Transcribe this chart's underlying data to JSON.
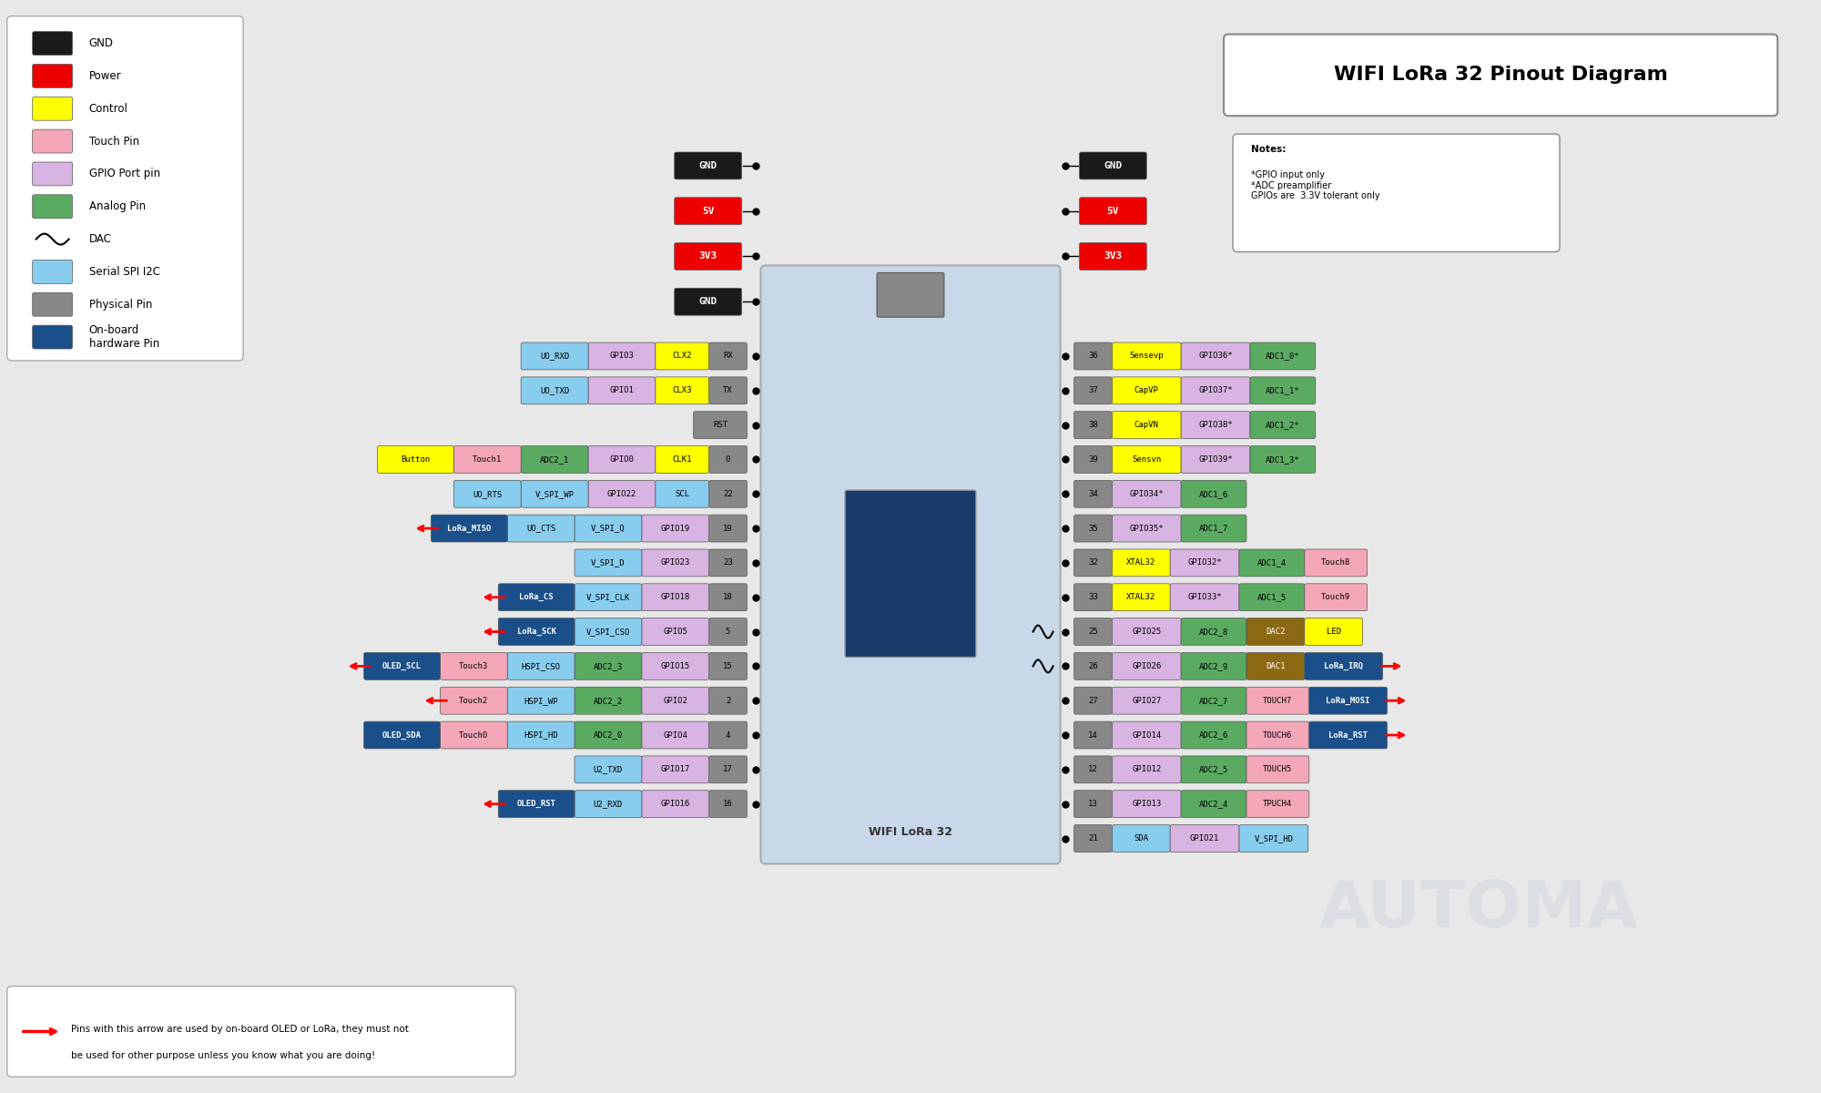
{
  "title": "WIFI LoRa 32 Pinout Diagram",
  "bg_color": "#f0f0f0",
  "board_image_placeholder": true,
  "legend_items": [
    {
      "label": "GND",
      "color": "#000000"
    },
    {
      "label": "Power",
      "color": "#ff0000"
    },
    {
      "label": "Control",
      "color": "#ffff00"
    },
    {
      "label": "Touch Pin",
      "color": "#f4a7b9"
    },
    {
      "label": "GPIO Port pin",
      "color": "#d8b4e2"
    },
    {
      "label": "Analog Pin",
      "color": "#5aab61"
    },
    {
      "label": "DAC",
      "color": "dac"
    },
    {
      "label": "Serial SPI I2C",
      "color": "#88bbee"
    },
    {
      "label": "Physical Pin",
      "color": "#888888"
    },
    {
      "label": "On-board\nhardware Pin",
      "color": "#1a4f8a"
    }
  ],
  "notes": "*GPIO input only\n*ADC preamplifier\nGPIOs are  3.3V tolerant only",
  "colors": {
    "black": "#1a1a1a",
    "red": "#ee0000",
    "yellow": "#ffff00",
    "pink": "#f4a7b9",
    "lavender": "#d8b4e2",
    "green": "#5aab61",
    "light_blue": "#88ccee",
    "gray": "#888888",
    "dark_blue": "#1a4f8a",
    "olive": "#8b6914",
    "light_green": "#90c97a",
    "white": "#ffffff",
    "bg": "#e8e8e8"
  },
  "left_pins": [
    {
      "row": 0,
      "pin_num": null,
      "labels": [
        {
          "text": "GND",
          "color": "#1a1a1a",
          "fc": "#1a1a1a",
          "tc": "white"
        }
      ]
    },
    {
      "row": 1,
      "pin_num": null,
      "labels": [
        {
          "text": "5V",
          "color": "#ee0000",
          "fc": "#ee0000",
          "tc": "white"
        }
      ]
    },
    {
      "row": 2,
      "pin_num": null,
      "labels": [
        {
          "text": "3V3",
          "color": "#ee0000",
          "fc": "#ee0000",
          "tc": "white"
        }
      ]
    },
    {
      "row": 3,
      "pin_num": null,
      "labels": [
        {
          "text": "GND",
          "color": "#1a1a1a",
          "fc": "#1a1a1a",
          "tc": "white"
        }
      ]
    },
    {
      "row": 4,
      "arrow": false,
      "labels": [
        {
          "text": "UO_RXD",
          "fc": "#88ccee",
          "tc": "black"
        },
        {
          "text": "GPIO3",
          "fc": "#d8b4e2",
          "tc": "black"
        },
        {
          "text": "CLX2",
          "fc": "#ffff00",
          "tc": "black"
        },
        {
          "text": "RX",
          "fc": "#888888",
          "tc": "black"
        }
      ]
    },
    {
      "row": 5,
      "arrow": false,
      "labels": [
        {
          "text": "UO_TXD",
          "fc": "#88ccee",
          "tc": "black"
        },
        {
          "text": "GPIO1",
          "fc": "#d8b4e2",
          "tc": "black"
        },
        {
          "text": "CLX3",
          "fc": "#ffff00",
          "tc": "black"
        },
        {
          "text": "TX",
          "fc": "#888888",
          "tc": "black"
        }
      ]
    },
    {
      "row": 6,
      "arrow": false,
      "labels": [
        {
          "text": "RST",
          "fc": "#888888",
          "tc": "black"
        }
      ]
    },
    {
      "row": 7,
      "arrow": false,
      "labels": [
        {
          "text": "Button",
          "fc": "#ffff00",
          "tc": "black"
        },
        {
          "text": "Touch1",
          "fc": "#f4a7b9",
          "tc": "black"
        },
        {
          "text": "ADC2_1",
          "fc": "#5aab61",
          "tc": "black"
        },
        {
          "text": "GPIO0",
          "fc": "#d8b4e2",
          "tc": "black"
        },
        {
          "text": "CLK1",
          "fc": "#ffff00",
          "tc": "black"
        },
        {
          "text": "0",
          "fc": "#888888",
          "tc": "black"
        }
      ]
    },
    {
      "row": 8,
      "arrow": false,
      "labels": [
        {
          "text": "UO_RTS",
          "fc": "#88ccee",
          "tc": "black"
        },
        {
          "text": "V_SPI_WP",
          "fc": "#88ccee",
          "tc": "black"
        },
        {
          "text": "GPIO22",
          "fc": "#d8b4e2",
          "tc": "black"
        },
        {
          "text": "SCL",
          "fc": "#88ccee",
          "tc": "black"
        },
        {
          "text": "22",
          "fc": "#888888",
          "tc": "black"
        }
      ]
    },
    {
      "row": 9,
      "arrow": true,
      "labels": [
        {
          "text": "LoRa_MISO",
          "fc": "#1a4f8a",
          "tc": "white"
        },
        {
          "text": "UO_CTS",
          "fc": "#88ccee",
          "tc": "black"
        },
        {
          "text": "V_SPI_Q",
          "fc": "#88ccee",
          "tc": "black"
        },
        {
          "text": "GPIO19",
          "fc": "#d8b4e2",
          "tc": "black"
        },
        {
          "text": "19",
          "fc": "#888888",
          "tc": "black"
        }
      ]
    },
    {
      "row": 10,
      "arrow": false,
      "labels": [
        {
          "text": "V_SPI_D",
          "fc": "#88ccee",
          "tc": "black"
        },
        {
          "text": "GPIO23",
          "fc": "#d8b4e2",
          "tc": "black"
        },
        {
          "text": "23",
          "fc": "#888888",
          "tc": "black"
        }
      ]
    },
    {
      "row": 11,
      "arrow": true,
      "labels": [
        {
          "text": "LoRa_CS",
          "fc": "#1a4f8a",
          "tc": "white"
        },
        {
          "text": "V_SPI_CLK",
          "fc": "#88ccee",
          "tc": "black"
        },
        {
          "text": "GPIO18",
          "fc": "#d8b4e2",
          "tc": "black"
        },
        {
          "text": "18",
          "fc": "#888888",
          "tc": "black"
        }
      ]
    },
    {
      "row": 12,
      "arrow": true,
      "labels": [
        {
          "text": "LoRa_SCK",
          "fc": "#1a4f8a",
          "tc": "white"
        },
        {
          "text": "V_SPI_CSO",
          "fc": "#88ccee",
          "tc": "black"
        },
        {
          "text": "GPIO5",
          "fc": "#d8b4e2",
          "tc": "black"
        },
        {
          "text": "5",
          "fc": "#888888",
          "tc": "black"
        }
      ]
    },
    {
      "row": 13,
      "arrow": true,
      "labels": [
        {
          "text": "OLED_SCL",
          "fc": "#1a4f8a",
          "tc": "white"
        },
        {
          "text": "Touch3",
          "fc": "#f4a7b9",
          "tc": "black"
        },
        {
          "text": "HSPI_CSO",
          "fc": "#88ccee",
          "tc": "black"
        },
        {
          "text": "ADC2_3",
          "fc": "#5aab61",
          "tc": "black"
        },
        {
          "text": "GPIO15",
          "fc": "#d8b4e2",
          "tc": "black"
        },
        {
          "text": "15",
          "fc": "#888888",
          "tc": "black"
        }
      ]
    },
    {
      "row": 14,
      "arrow": true,
      "labels": [
        {
          "text": "Touch2",
          "fc": "#f4a7b9",
          "tc": "black"
        },
        {
          "text": "HSPI_WP",
          "fc": "#88ccee",
          "tc": "black"
        },
        {
          "text": "ADC2_2",
          "fc": "#5aab61",
          "tc": "black"
        },
        {
          "text": "GPIO2",
          "fc": "#d8b4e2",
          "tc": "black"
        },
        {
          "text": "2",
          "fc": "#888888",
          "tc": "black"
        }
      ]
    },
    {
      "row": 15,
      "arrow": false,
      "labels": [
        {
          "text": "OLED_SDA",
          "fc": "#1a4f8a",
          "tc": "white"
        },
        {
          "text": "Touch0",
          "fc": "#f4a7b9",
          "tc": "black"
        },
        {
          "text": "HSPI_HD",
          "fc": "#88ccee",
          "tc": "black"
        },
        {
          "text": "ADC2_0",
          "fc": "#5aab61",
          "tc": "black"
        },
        {
          "text": "GPIO4",
          "fc": "#d8b4e2",
          "tc": "black"
        },
        {
          "text": "4",
          "fc": "#888888",
          "tc": "black"
        }
      ]
    },
    {
      "row": 16,
      "arrow": false,
      "labels": [
        {
          "text": "U2_TXD",
          "fc": "#88ccee",
          "tc": "black"
        },
        {
          "text": "GPIO17",
          "fc": "#d8b4e2",
          "tc": "black"
        },
        {
          "text": "17",
          "fc": "#888888",
          "tc": "black"
        }
      ]
    },
    {
      "row": 17,
      "arrow": true,
      "labels": [
        {
          "text": "OLED_RST",
          "fc": "#1a4f8a",
          "tc": "white"
        },
        {
          "text": "U2_RXD",
          "fc": "#88ccee",
          "tc": "black"
        },
        {
          "text": "GPIO16",
          "fc": "#d8b4e2",
          "tc": "black"
        },
        {
          "text": "16",
          "fc": "#888888",
          "tc": "black"
        }
      ]
    }
  ],
  "right_pins": [
    {
      "row": 0,
      "labels": [
        {
          "text": "GND",
          "fc": "#1a1a1a",
          "tc": "white"
        }
      ]
    },
    {
      "row": 1,
      "labels": [
        {
          "text": "5V",
          "fc": "#ee0000",
          "tc": "white"
        }
      ]
    },
    {
      "row": 2,
      "labels": [
        {
          "text": "3V3",
          "fc": "#ee0000",
          "tc": "white"
        }
      ]
    },
    {
      "row": 3,
      "pin_num": "36",
      "labels": [
        {
          "text": "36",
          "fc": "#888888",
          "tc": "black"
        },
        {
          "text": "Sensevp",
          "fc": "#ffff00",
          "tc": "black"
        },
        {
          "text": "GPIO36*",
          "fc": "#d8b4e2",
          "tc": "black"
        },
        {
          "text": "ADC1_0*",
          "fc": "#5aab61",
          "tc": "black"
        }
      ]
    },
    {
      "row": 4,
      "labels": [
        {
          "text": "37",
          "fc": "#888888",
          "tc": "black"
        },
        {
          "text": "CapVP",
          "fc": "#ffff00",
          "tc": "black"
        },
        {
          "text": "GPIO37*",
          "fc": "#d8b4e2",
          "tc": "black"
        },
        {
          "text": "ADC1_1*",
          "fc": "#5aab61",
          "tc": "black"
        }
      ]
    },
    {
      "row": 5,
      "labels": [
        {
          "text": "38",
          "fc": "#888888",
          "tc": "black"
        },
        {
          "text": "CapVN",
          "fc": "#ffff00",
          "tc": "black"
        },
        {
          "text": "GPIO38*",
          "fc": "#d8b4e2",
          "tc": "black"
        },
        {
          "text": "ADC1_2*",
          "fc": "#5aab61",
          "tc": "black"
        }
      ]
    },
    {
      "row": 6,
      "labels": [
        {
          "text": "39",
          "fc": "#888888",
          "tc": "black"
        },
        {
          "text": "Sensvn",
          "fc": "#ffff00",
          "tc": "black"
        },
        {
          "text": "GPIO39*",
          "fc": "#d8b4e2",
          "tc": "black"
        },
        {
          "text": "ADC1_3*",
          "fc": "#5aab61",
          "tc": "black"
        }
      ]
    },
    {
      "row": 7,
      "labels": [
        {
          "text": "34",
          "fc": "#888888",
          "tc": "black"
        },
        {
          "text": "GPIO34*",
          "fc": "#d8b4e2",
          "tc": "black"
        },
        {
          "text": "ADC1_6",
          "fc": "#5aab61",
          "tc": "black"
        }
      ]
    },
    {
      "row": 8,
      "labels": [
        {
          "text": "35",
          "fc": "#888888",
          "tc": "black"
        },
        {
          "text": "GPIO35*",
          "fc": "#d8b4e2",
          "tc": "black"
        },
        {
          "text": "ADC1_7",
          "fc": "#5aab61",
          "tc": "black"
        }
      ]
    },
    {
      "row": 9,
      "labels": [
        {
          "text": "32",
          "fc": "#888888",
          "tc": "black"
        },
        {
          "text": "XTAL32",
          "fc": "#ffff00",
          "tc": "black"
        },
        {
          "text": "GPIO32*",
          "fc": "#d8b4e2",
          "tc": "black"
        },
        {
          "text": "ADC1_4",
          "fc": "#5aab61",
          "tc": "black"
        },
        {
          "text": "Touch8",
          "fc": "#f4a7b9",
          "tc": "black"
        }
      ]
    },
    {
      "row": 10,
      "labels": [
        {
          "text": "33",
          "fc": "#888888",
          "tc": "black"
        },
        {
          "text": "XTAL32",
          "fc": "#ffff00",
          "tc": "black"
        },
        {
          "text": "GPIO33*",
          "fc": "#d8b4e2",
          "tc": "black"
        },
        {
          "text": "ADC1_5",
          "fc": "#5aab61",
          "tc": "black"
        },
        {
          "text": "Touch9",
          "fc": "#f4a7b9",
          "tc": "black"
        }
      ]
    },
    {
      "row": 11,
      "dac": true,
      "labels": [
        {
          "text": "25",
          "fc": "#888888",
          "tc": "black"
        },
        {
          "text": "GPIO25",
          "fc": "#d8b4e2",
          "tc": "black"
        },
        {
          "text": "ADC2_8",
          "fc": "#5aab61",
          "tc": "black"
        },
        {
          "text": "DAC2",
          "fc": "#8b6914",
          "tc": "white"
        },
        {
          "text": "LED",
          "fc": "#ffff00",
          "tc": "black"
        }
      ]
    },
    {
      "row": 12,
      "dac": true,
      "arrow": true,
      "labels": [
        {
          "text": "26",
          "fc": "#888888",
          "tc": "black"
        },
        {
          "text": "GPIO26",
          "fc": "#d8b4e2",
          "tc": "black"
        },
        {
          "text": "ADC2_9",
          "fc": "#5aab61",
          "tc": "black"
        },
        {
          "text": "DAC1",
          "fc": "#8b6914",
          "tc": "white"
        },
        {
          "text": "LoRa_IRQ",
          "fc": "#1a4f8a",
          "tc": "white"
        }
      ]
    },
    {
      "row": 13,
      "arrow": true,
      "labels": [
        {
          "text": "27",
          "fc": "#888888",
          "tc": "black"
        },
        {
          "text": "GPIO27",
          "fc": "#d8b4e2",
          "tc": "black"
        },
        {
          "text": "ADC2_7",
          "fc": "#5aab61",
          "tc": "black"
        },
        {
          "text": "TOUCH7",
          "fc": "#f4a7b9",
          "tc": "black"
        },
        {
          "text": "LoRa_MOSI",
          "fc": "#1a4f8a",
          "tc": "white"
        }
      ]
    },
    {
      "row": 14,
      "arrow": true,
      "labels": [
        {
          "text": "14",
          "fc": "#888888",
          "tc": "black"
        },
        {
          "text": "GPIO14",
          "fc": "#d8b4e2",
          "tc": "black"
        },
        {
          "text": "ADC2_6",
          "fc": "#5aab61",
          "tc": "black"
        },
        {
          "text": "TOUCH6",
          "fc": "#f4a7b9",
          "tc": "black"
        },
        {
          "text": "LoRa_RST",
          "fc": "#1a4f8a",
          "tc": "white"
        }
      ]
    },
    {
      "row": 15,
      "labels": [
        {
          "text": "12",
          "fc": "#888888",
          "tc": "black"
        },
        {
          "text": "GPIO12",
          "fc": "#d8b4e2",
          "tc": "black"
        },
        {
          "text": "ADC2_5",
          "fc": "#5aab61",
          "tc": "black"
        },
        {
          "text": "TOUCH5",
          "fc": "#f4a7b9",
          "tc": "black"
        }
      ]
    },
    {
      "row": 16,
      "labels": [
        {
          "text": "13",
          "fc": "#888888",
          "tc": "black"
        },
        {
          "text": "GPIO13",
          "fc": "#d8b4e2",
          "tc": "black"
        },
        {
          "text": "ADC2_4",
          "fc": "#5aab61",
          "tc": "black"
        },
        {
          "text": "TPUCH4",
          "fc": "#f4a7b9",
          "tc": "black"
        }
      ]
    },
    {
      "row": 17,
      "labels": [
        {
          "text": "21",
          "fc": "#888888",
          "tc": "black"
        },
        {
          "text": "SDA",
          "fc": "#88ccee",
          "tc": "black"
        },
        {
          "text": "GPIO21",
          "fc": "#d8b4e2",
          "tc": "black"
        },
        {
          "text": "V_SPI_HD",
          "fc": "#88ccee",
          "tc": "black"
        }
      ]
    }
  ]
}
